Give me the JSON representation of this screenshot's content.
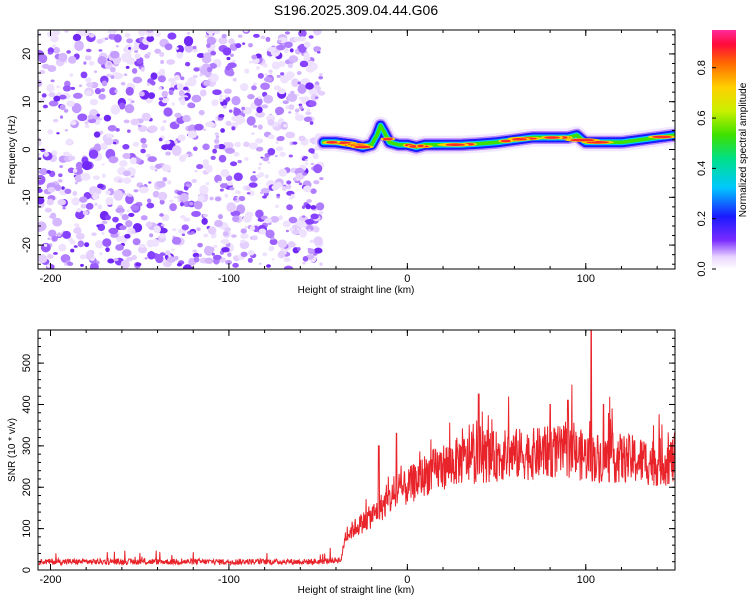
{
  "title": "S196.2025.309.04.44.G06",
  "chart_data": [
    {
      "type": "heatmap",
      "name": "spectrogram",
      "xlabel": "Height of straight line (km)",
      "ylabel": "Frequency (Hz)",
      "xlim": [
        -207,
        150
      ],
      "ylim": [
        -25,
        25
      ],
      "xticks": [
        -200,
        -100,
        0,
        100
      ],
      "xtick_labels": [
        "-200",
        "-100",
        "0",
        "100"
      ],
      "yticks": [
        -20,
        -10,
        0,
        10,
        20
      ],
      "ytick_labels": [
        "-20",
        "-10",
        "0",
        "10",
        "20"
      ],
      "noise_region_x": [
        -207,
        -48
      ],
      "ridge": {
        "x": [
          -47,
          -40,
          -30,
          -25,
          -20,
          -17,
          -15,
          -12,
          -10,
          -5,
          0,
          5,
          10,
          20,
          30,
          40,
          50,
          60,
          70,
          80,
          90,
          95,
          98,
          100,
          110,
          120,
          130,
          140,
          150
        ],
        "y": [
          1.5,
          1.5,
          1.0,
          0.5,
          1.0,
          3.0,
          5.0,
          3.0,
          1.5,
          1.0,
          1.0,
          0.5,
          1.0,
          1.0,
          1.0,
          1.2,
          1.5,
          2.0,
          2.5,
          2.5,
          2.5,
          3.0,
          2.0,
          1.5,
          1.5,
          1.5,
          2.0,
          2.5,
          3.0
        ]
      },
      "colorbar": {
        "label": "Normalized spectral amplitude",
        "range": [
          0.0,
          0.95
        ],
        "ticks": [
          0.0,
          0.2,
          0.4,
          0.6,
          0.8
        ],
        "tick_labels": [
          "0.0",
          "0.2",
          "0.4",
          "0.6",
          "0.8"
        ]
      }
    },
    {
      "type": "line",
      "name": "snr",
      "xlabel": "Height of straight line (km)",
      "ylabel": "SNR (10 * v/v)",
      "xlim": [
        -207,
        150
      ],
      "ylim": [
        0,
        580
      ],
      "xticks": [
        -200,
        -100,
        0,
        100
      ],
      "xtick_labels": [
        "-200",
        "-100",
        "0",
        "100"
      ],
      "yticks": [
        0,
        100,
        200,
        300,
        400,
        500
      ],
      "ytick_labels": [
        "0",
        "100",
        "200",
        "300",
        "400",
        "500"
      ],
      "color": "#e8232a",
      "envelope": {
        "x": [
          -207,
          -150,
          -100,
          -50,
          -37,
          -35,
          -30,
          -20,
          -15,
          -10,
          -5,
          0,
          10,
          20,
          30,
          40,
          50,
          60,
          70,
          80,
          90,
          100,
          110,
          120,
          130,
          140,
          150
        ],
        "y": [
          20,
          20,
          20,
          20,
          25,
          80,
          100,
          130,
          150,
          170,
          185,
          200,
          230,
          250,
          265,
          270,
          275,
          280,
          280,
          285,
          285,
          275,
          270,
          270,
          265,
          260,
          265
        ]
      },
      "spikes": [
        {
          "x": -16,
          "y": 300
        },
        {
          "x": -6,
          "y": 330
        },
        {
          "x": 40,
          "y": 425
        },
        {
          "x": 80,
          "y": 400
        },
        {
          "x": 90,
          "y": 410
        },
        {
          "x": 103,
          "y": 585
        },
        {
          "x": 110,
          "y": 400
        }
      ]
    }
  ]
}
